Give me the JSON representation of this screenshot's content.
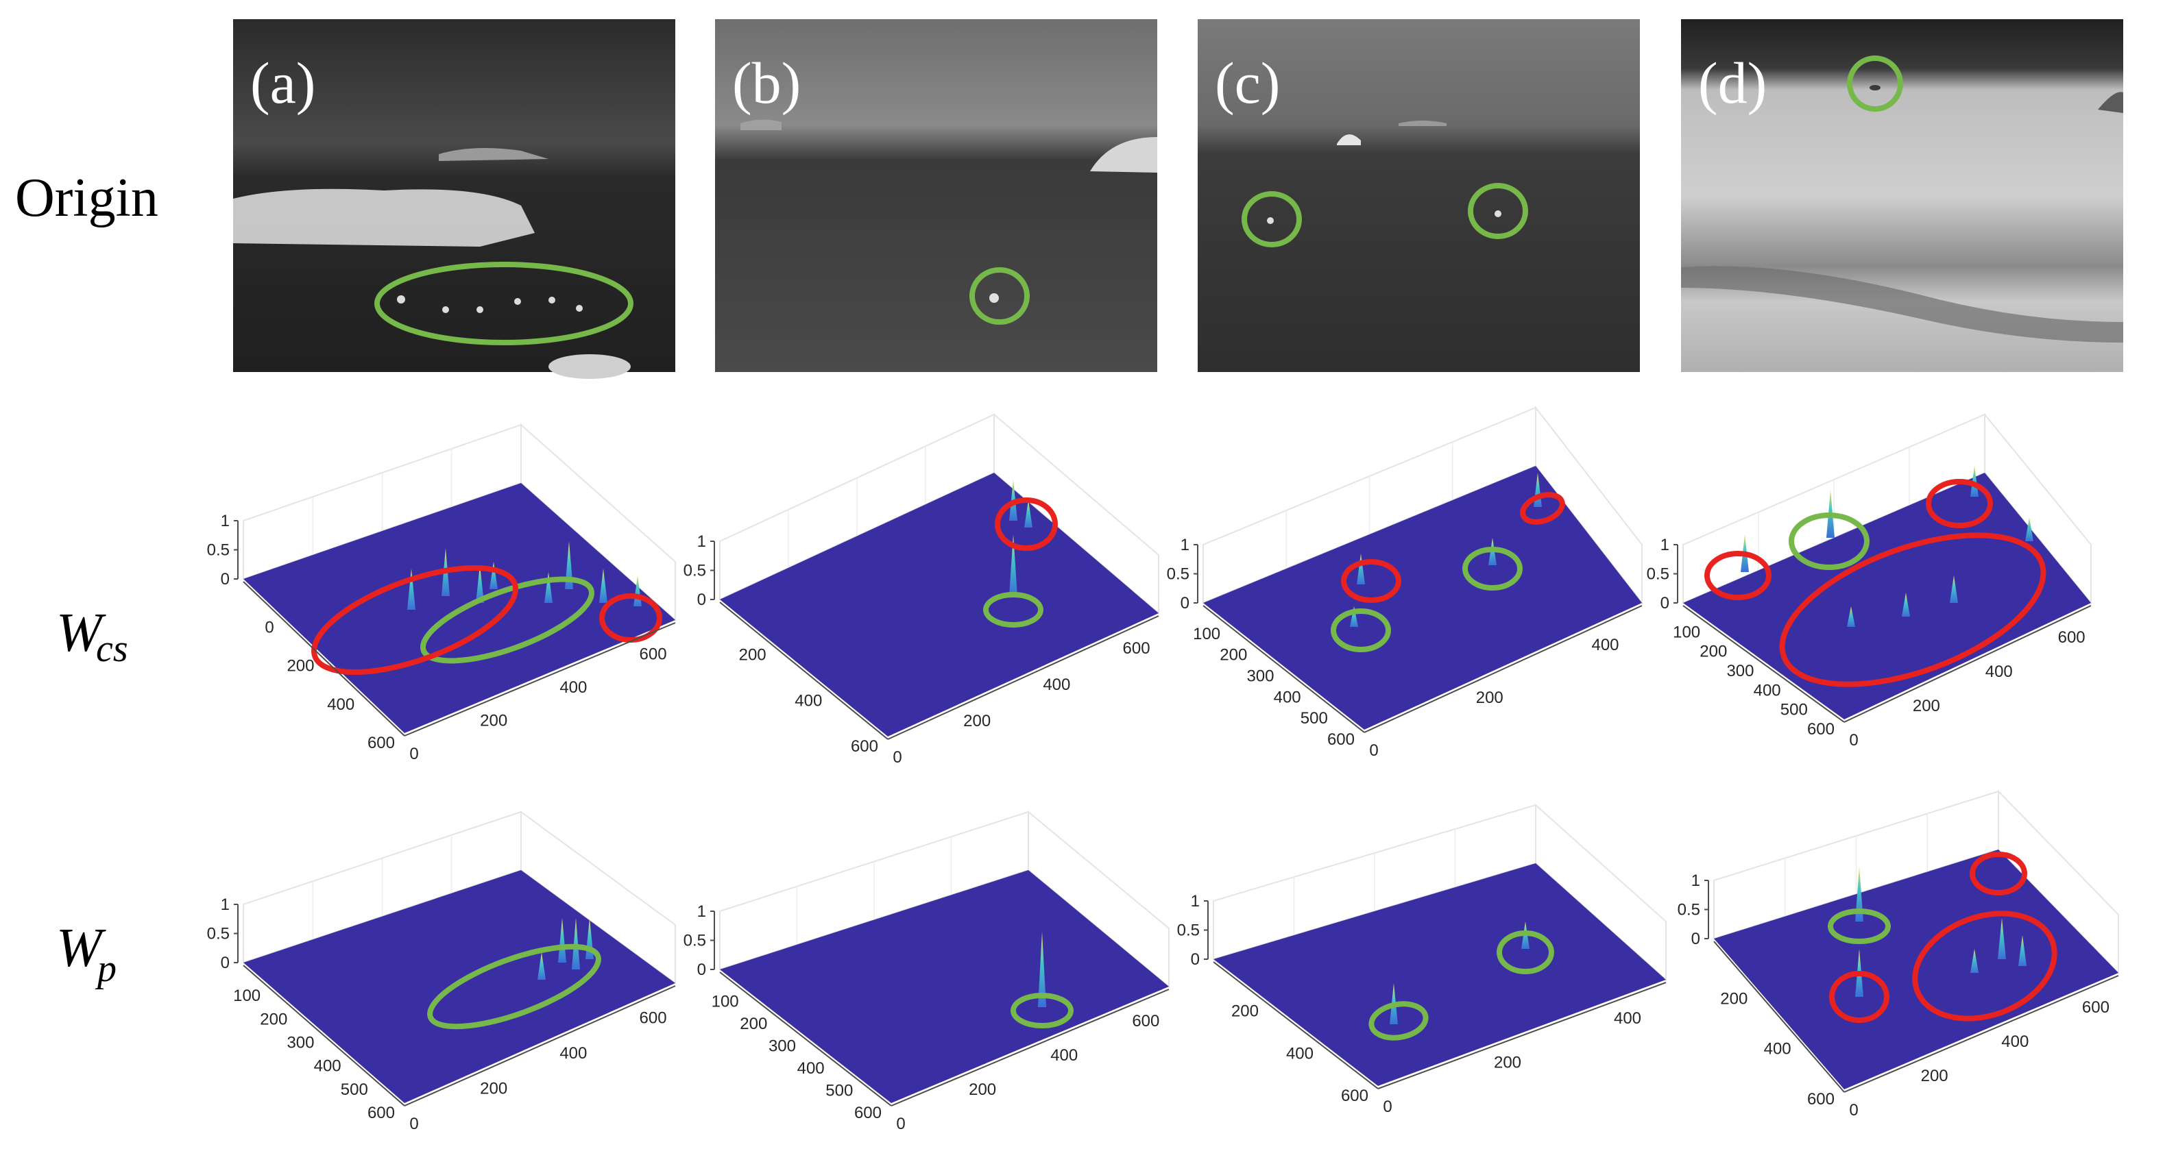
{
  "figure": {
    "row_labels": {
      "origin": "Origin",
      "wcs": {
        "main": "W",
        "sub": "cs"
      },
      "wp": {
        "main": "W",
        "sub": "p"
      }
    },
    "panels": [
      {
        "id": "a",
        "label": "(a)",
        "targets_marked": 1
      },
      {
        "id": "b",
        "label": "(b)",
        "targets_marked": 1
      },
      {
        "id": "c",
        "label": "(c)",
        "targets_marked": 2
      },
      {
        "id": "d",
        "label": "(d)",
        "targets_marked": 1
      }
    ],
    "colors": {
      "target_circle": "#77b84a",
      "false_alarm_circle": "#e8231f",
      "surface": "#3a2ea3",
      "peak_low": "#3a6fd8",
      "peak_high": "#f5e04a"
    },
    "axis_ticks": {
      "z": [
        "0",
        "0.5",
        "1"
      ],
      "row2": [
        {
          "left": [
            "0",
            "200",
            "400",
            "600"
          ],
          "right": [
            "0",
            "200",
            "400",
            "600"
          ]
        },
        {
          "left": [
            "200",
            "400",
            "600"
          ],
          "right": [
            "0",
            "200",
            "400",
            "600"
          ]
        },
        {
          "left": [
            "100",
            "200",
            "300",
            "400",
            "500",
            "600"
          ],
          "right": [
            "0",
            "200",
            "400"
          ]
        },
        {
          "left": [
            "100",
            "200",
            "300",
            "400",
            "500",
            "600"
          ],
          "right": [
            "0",
            "200",
            "400",
            "600"
          ]
        }
      ],
      "row3": [
        {
          "left": [
            "100",
            "200",
            "300",
            "400",
            "500",
            "600"
          ],
          "right": [
            "0",
            "200",
            "400",
            "600"
          ]
        },
        {
          "left": [
            "100",
            "200",
            "300",
            "400",
            "500",
            "600"
          ],
          "right": [
            "0",
            "200",
            "400",
            "600"
          ]
        },
        {
          "left": [
            "200",
            "400",
            "600"
          ],
          "right": [
            "0",
            "200",
            "400"
          ]
        },
        {
          "left": [
            "200",
            "400",
            "600"
          ],
          "right": [
            "0",
            "200",
            "400",
            "600"
          ]
        }
      ]
    }
  }
}
